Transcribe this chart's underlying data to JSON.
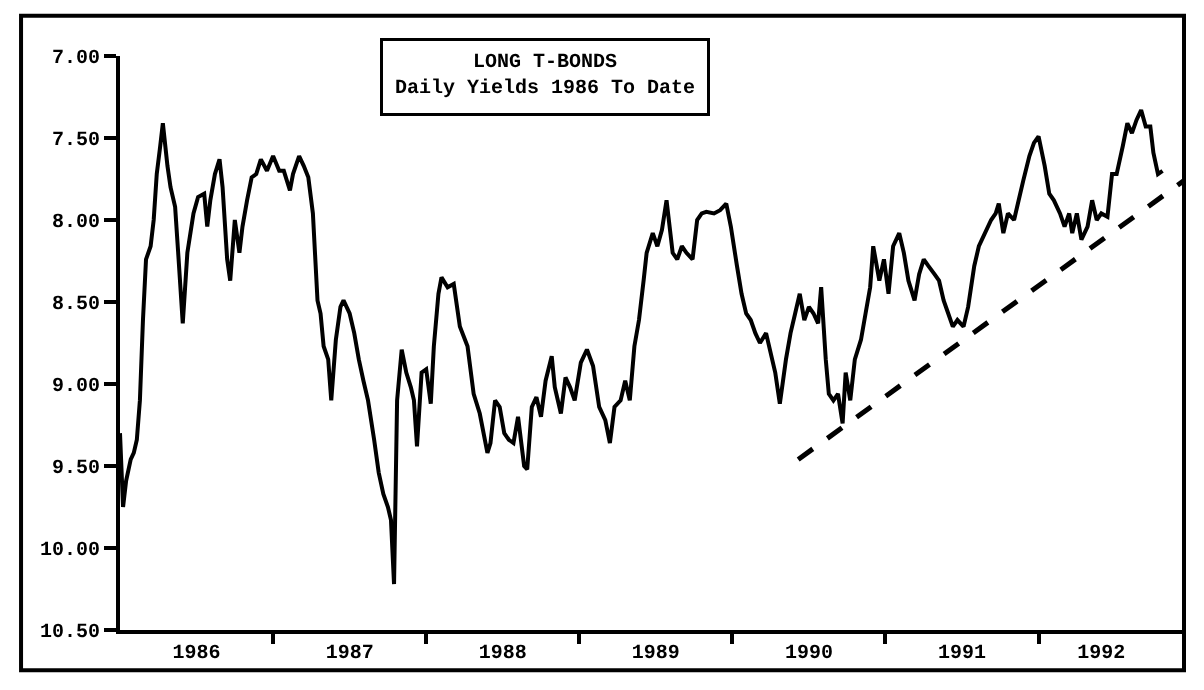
{
  "chart_data": {
    "type": "line",
    "title": "LONG T-BONDS",
    "subtitle": "Daily Yields 1986 To Date",
    "xlim": [
      1986.0,
      1992.95
    ],
    "xticks": [
      {
        "value": 1986.5,
        "label": "1986"
      },
      {
        "value": 1987,
        "label": null
      },
      {
        "value": 1987.5,
        "label": "1987"
      },
      {
        "value": 1988,
        "label": null
      },
      {
        "value": 1988.5,
        "label": "1988"
      },
      {
        "value": 1989,
        "label": null
      },
      {
        "value": 1989.5,
        "label": "1989"
      },
      {
        "value": 1990,
        "label": null
      },
      {
        "value": 1990.5,
        "label": "1990"
      },
      {
        "value": 1991,
        "label": null
      },
      {
        "value": 1991.5,
        "label": "1991"
      },
      {
        "value": 1992,
        "label": null
      },
      {
        "value": 1992.41,
        "label": "1992"
      }
    ],
    "ylim": [
      10.5,
      7.0
    ],
    "yticks": [
      {
        "value": 7.0,
        "label": "7.00"
      },
      {
        "value": 7.5,
        "label": "7.50"
      },
      {
        "value": 8.0,
        "label": "8.00"
      },
      {
        "value": 8.5,
        "label": "8.50"
      },
      {
        "value": 9.0,
        "label": "9.00"
      },
      {
        "value": 9.5,
        "label": "9.50"
      },
      {
        "value": 10.0,
        "label": "10.00"
      },
      {
        "value": 10.5,
        "label": "10.50"
      }
    ],
    "marker": "none",
    "series": [
      {
        "color": "#000000",
        "line_style": "solid",
        "x": [
          1986.0,
          1986.02,
          1986.04,
          1986.07,
          1986.09,
          1986.11,
          1986.13,
          1986.15,
          1986.17,
          1986.2,
          1986.22,
          1986.24,
          1986.26,
          1986.28,
          1986.31,
          1986.33,
          1986.36,
          1986.38,
          1986.41,
          1986.44,
          1986.48,
          1986.51,
          1986.55,
          1986.57,
          1986.59,
          1986.62,
          1986.65,
          1986.67,
          1986.7,
          1986.72,
          1986.75,
          1986.78,
          1986.8,
          1986.83,
          1986.86,
          1986.89,
          1986.92,
          1986.96,
          1987.0,
          1987.04,
          1987.07,
          1987.11,
          1987.13,
          1987.17,
          1987.2,
          1987.23,
          1987.26,
          1987.29,
          1987.31,
          1987.33,
          1987.36,
          1987.38,
          1987.41,
          1987.44,
          1987.46,
          1987.5,
          1987.53,
          1987.56,
          1987.59,
          1987.62,
          1987.66,
          1987.69,
          1987.72,
          1987.75,
          1987.77,
          1987.79,
          1987.81,
          1987.84,
          1987.87,
          1987.9,
          1987.92,
          1987.94,
          1987.97,
          1988.0,
          1988.03,
          1988.05,
          1988.08,
          1988.1,
          1988.14,
          1988.18,
          1988.22,
          1988.27,
          1988.31,
          1988.35,
          1988.4,
          1988.42,
          1988.45,
          1988.48,
          1988.51,
          1988.54,
          1988.57,
          1988.6,
          1988.64,
          1988.66,
          1988.69,
          1988.72,
          1988.75,
          1988.78,
          1988.82,
          1988.84,
          1988.88,
          1988.91,
          1988.94,
          1988.97,
          1989.01,
          1989.05,
          1989.09,
          1989.13,
          1989.17,
          1989.2,
          1989.23,
          1989.27,
          1989.3,
          1989.33,
          1989.36,
          1989.39,
          1989.42,
          1989.44,
          1989.48,
          1989.51,
          1989.54,
          1989.57,
          1989.61,
          1989.64,
          1989.67,
          1989.7,
          1989.74,
          1989.77,
          1989.8,
          1989.83,
          1989.88,
          1989.92,
          1989.96,
          1989.99,
          1990.03,
          1990.06,
          1990.09,
          1990.12,
          1990.15,
          1990.18,
          1990.22,
          1990.25,
          1990.28,
          1990.31,
          1990.35,
          1990.38,
          1990.41,
          1990.44,
          1990.47,
          1990.5,
          1990.53,
          1990.56,
          1990.58,
          1990.61,
          1990.63,
          1990.66,
          1990.69,
          1990.72,
          1990.74,
          1990.77,
          1990.8,
          1990.84,
          1990.87,
          1990.9,
          1990.92,
          1990.96,
          1990.99,
          1991.02,
          1991.05,
          1991.09,
          1991.12,
          1991.15,
          1991.19,
          1991.22,
          1991.25,
          1991.28,
          1991.32,
          1991.35,
          1991.38,
          1991.41,
          1991.44,
          1991.47,
          1991.51,
          1991.54,
          1991.58,
          1991.61,
          1991.64,
          1991.69,
          1991.72,
          1991.74,
          1991.77,
          1991.8,
          1991.84,
          1991.87,
          1991.9,
          1991.94,
          1991.97,
          1992.0,
          1992.04,
          1992.07,
          1992.1,
          1992.14,
          1992.17,
          1992.2,
          1992.22,
          1992.25,
          1992.28,
          1992.32,
          1992.35,
          1992.38,
          1992.41,
          1992.45,
          1992.48,
          1992.51,
          1992.55,
          1992.58,
          1992.61,
          1992.64,
          1992.67,
          1992.7,
          1992.73,
          1992.75,
          1992.78,
          1992.81
        ],
        "values": [
          9.3,
          9.75,
          9.59,
          9.46,
          9.42,
          9.34,
          9.1,
          8.61,
          8.24,
          8.16,
          8.0,
          7.72,
          7.57,
          7.41,
          7.67,
          7.8,
          7.92,
          8.2,
          8.63,
          8.2,
          7.96,
          7.86,
          7.84,
          8.04,
          7.88,
          7.72,
          7.63,
          7.8,
          8.24,
          8.37,
          8.0,
          8.2,
          8.04,
          7.88,
          7.74,
          7.72,
          7.63,
          7.7,
          7.61,
          7.7,
          7.7,
          7.82,
          7.72,
          7.61,
          7.67,
          7.74,
          7.96,
          8.49,
          8.57,
          8.77,
          8.85,
          9.1,
          8.73,
          8.53,
          8.49,
          8.57,
          8.69,
          8.85,
          8.98,
          9.1,
          9.34,
          9.54,
          9.67,
          9.75,
          9.83,
          10.22,
          9.1,
          8.79,
          8.93,
          9.02,
          9.1,
          9.38,
          8.93,
          8.91,
          9.12,
          8.77,
          8.45,
          8.35,
          8.41,
          8.39,
          8.65,
          8.77,
          9.06,
          9.18,
          9.42,
          9.36,
          9.1,
          9.14,
          9.3,
          9.34,
          9.36,
          9.2,
          9.5,
          9.52,
          9.14,
          9.08,
          9.2,
          8.98,
          8.83,
          9.02,
          9.18,
          8.96,
          9.02,
          9.1,
          8.87,
          8.79,
          8.89,
          9.14,
          9.22,
          9.36,
          9.14,
          9.1,
          8.98,
          9.1,
          8.77,
          8.61,
          8.37,
          8.2,
          8.08,
          8.16,
          8.06,
          7.88,
          8.2,
          8.24,
          8.16,
          8.2,
          8.24,
          8.0,
          7.96,
          7.95,
          7.96,
          7.94,
          7.9,
          8.04,
          8.28,
          8.45,
          8.57,
          8.61,
          8.69,
          8.75,
          8.69,
          8.81,
          8.93,
          9.12,
          8.85,
          8.69,
          8.57,
          8.45,
          8.61,
          8.53,
          8.57,
          8.63,
          8.41,
          8.85,
          9.06,
          9.1,
          9.06,
          9.24,
          8.93,
          9.1,
          8.85,
          8.73,
          8.57,
          8.41,
          8.16,
          8.37,
          8.24,
          8.45,
          8.16,
          8.08,
          8.2,
          8.37,
          8.49,
          8.33,
          8.24,
          8.28,
          8.33,
          8.37,
          8.49,
          8.57,
          8.65,
          8.61,
          8.65,
          8.53,
          8.28,
          8.16,
          8.1,
          8.0,
          7.96,
          7.9,
          8.08,
          7.96,
          8.0,
          7.88,
          7.76,
          7.61,
          7.53,
          7.49,
          7.67,
          7.84,
          7.88,
          7.96,
          8.04,
          7.96,
          8.08,
          7.96,
          8.12,
          8.04,
          7.88,
          8.0,
          7.96,
          7.98,
          7.72,
          7.72,
          7.55,
          7.41,
          7.47,
          7.39,
          7.33,
          7.43,
          7.43,
          7.59,
          7.72,
          7.7
        ]
      },
      {
        "type": "line",
        "color": "#000000",
        "line_style": "dashed",
        "x": [
          1990.43,
          1992.95
        ],
        "values": [
          9.46,
          7.76
        ]
      }
    ]
  }
}
